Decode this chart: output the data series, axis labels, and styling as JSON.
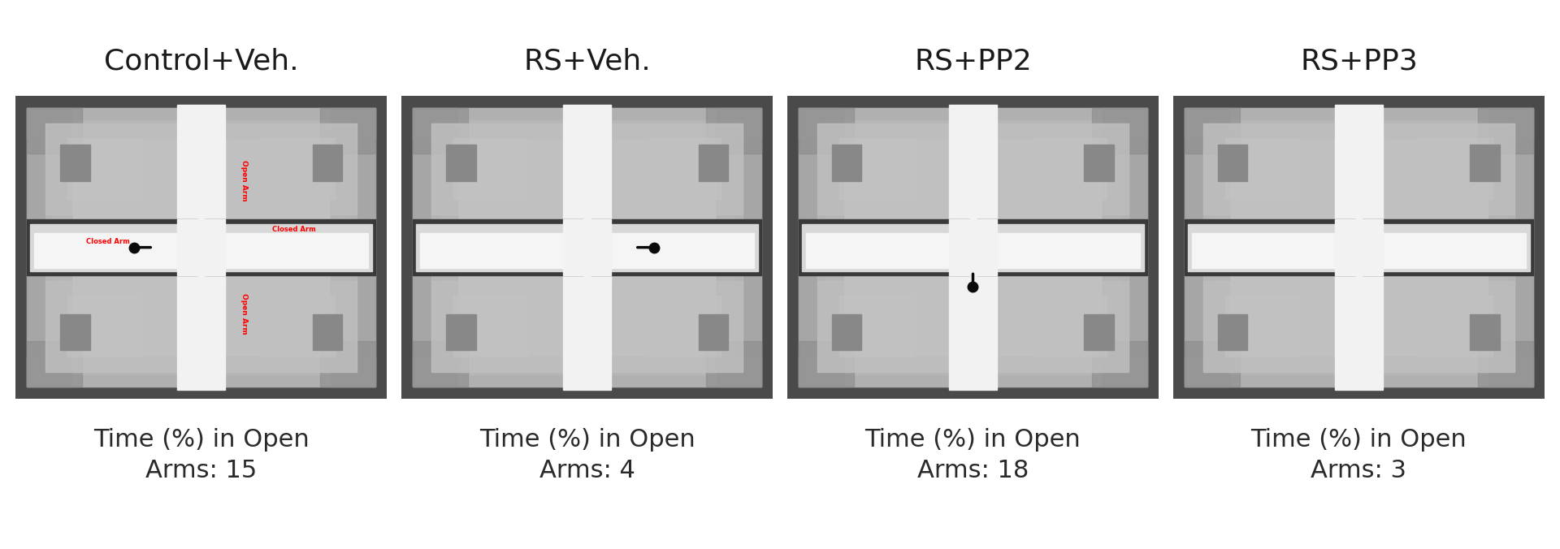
{
  "conditions": [
    "Control+Veh.",
    "RS+Veh.",
    "RS+PP2",
    "RS+PP3"
  ],
  "captions": [
    "Time (%) in Open\nArms: 15",
    "Time (%) in Open\nArms: 4",
    "Time (%) in Open\nArms: 18",
    "Time (%) in Open\nArms: 3"
  ],
  "title_fontsize": 26,
  "caption_fontsize": 22,
  "bg_color": "#ffffff",
  "title_color": "#1a1a1a",
  "caption_color": "#2a2a2a",
  "label_color": "#ff0000",
  "show_labels": [
    true,
    false,
    false,
    false
  ],
  "animal_positions": [
    [
      0.32,
      0.5
    ],
    [
      0.68,
      0.5
    ],
    [
      0.5,
      0.37
    ],
    null
  ],
  "animal_tail_directions": [
    [
      0.05,
      0.0
    ],
    [
      -0.05,
      0.0
    ],
    [
      0.0,
      0.05
    ],
    null
  ]
}
